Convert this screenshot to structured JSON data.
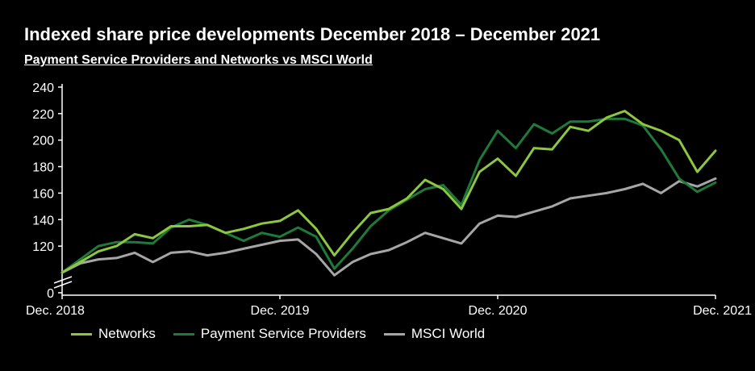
{
  "title": "Indexed share price developments December 2018 – December 2021",
  "subtitle": "Payment Service Providers and Networks vs MSCI World",
  "chart_data": {
    "type": "line",
    "x_ticks": [
      "Dec. 2018",
      "Dec. 2019",
      "Dec. 2020",
      "Dec. 2021"
    ],
    "y_ticks": [
      0,
      120,
      140,
      160,
      180,
      200,
      220,
      240
    ],
    "ylim": [
      100,
      240
    ],
    "axis_break": true,
    "grid": false,
    "legend_position": "bottom",
    "series": [
      {
        "name": "Networks",
        "color": "#8DC63F",
        "values": [
          100,
          108,
          116,
          120,
          129,
          126,
          135,
          135,
          136,
          130,
          133,
          137,
          139,
          147,
          133,
          113,
          130,
          145,
          148,
          156,
          170,
          163,
          148,
          176,
          186,
          173,
          194,
          193,
          210,
          207,
          217,
          222,
          212,
          207,
          200,
          176,
          192
        ]
      },
      {
        "name": "Payment Service Providers",
        "color": "#1E7A3A",
        "values": [
          100,
          110,
          120,
          123,
          123,
          122,
          134,
          140,
          136,
          130,
          124,
          130,
          127,
          134,
          127,
          103,
          118,
          135,
          147,
          155,
          163,
          166,
          151,
          185,
          207,
          194,
          212,
          205,
          214,
          214,
          216,
          216,
          211,
          193,
          171,
          161,
          168
        ]
      },
      {
        "name": "MSCI World",
        "color": "#A6A6A6",
        "values": [
          100,
          107,
          110,
          111,
          115,
          108,
          115,
          116,
          113,
          115,
          118,
          121,
          124,
          125,
          114,
          98,
          108,
          114,
          117,
          123,
          130,
          126,
          122,
          137,
          143,
          142,
          146,
          150,
          156,
          158,
          160,
          163,
          167,
          160,
          169,
          165,
          171
        ]
      }
    ]
  }
}
